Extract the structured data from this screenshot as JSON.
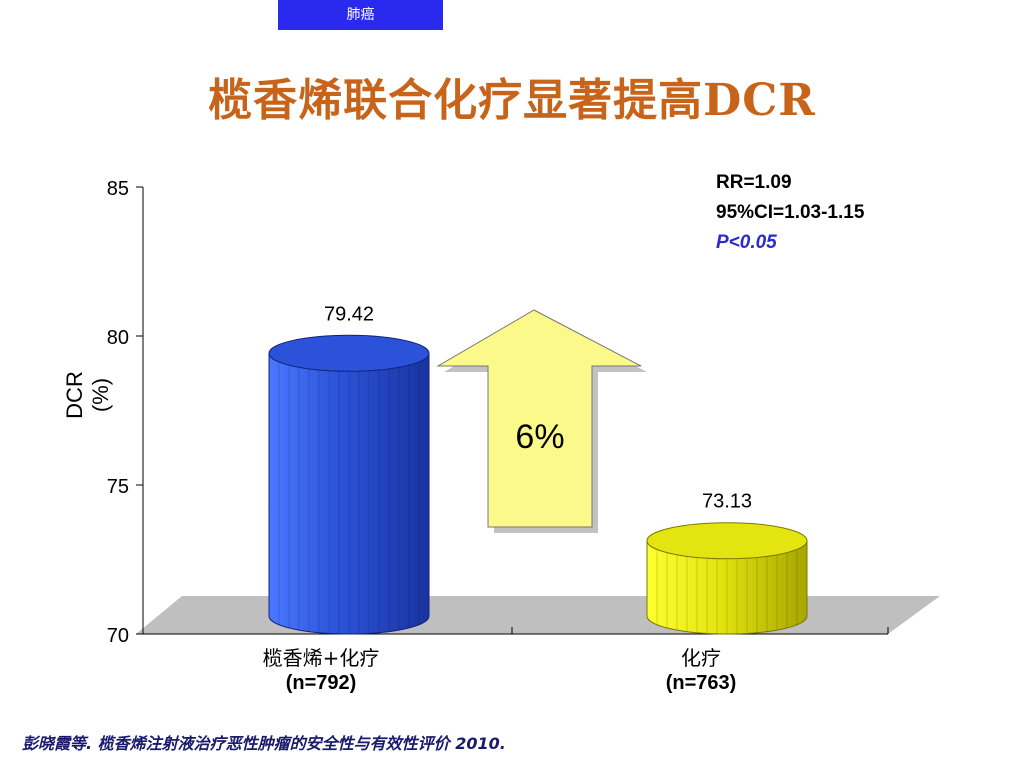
{
  "badge": "肺癌",
  "title": "榄香烯联合化疗显著提高DCR",
  "stats": {
    "rr": "RR=1.09",
    "ci": "95%CI=1.03-1.15",
    "p": "P<0.05"
  },
  "footnote": "彭晓霞等. 榄香烯注射液治疗恶性肿瘤的安全性与有效性评价 2010.",
  "colors": {
    "bar1": "#2b52d8",
    "bar2": "#e4e410",
    "arrow": "#fbf98a",
    "floor": "#bfbfbf",
    "title": "#c8641a"
  },
  "chart_data": {
    "type": "bar",
    "ylabel": "DCR\n(%)",
    "ylim": [
      70,
      85
    ],
    "yticks": [
      70,
      75,
      80,
      85
    ],
    "categories": [
      "榄香烯+化疗",
      "化疗"
    ],
    "sublabels": [
      "(n=792)",
      "(n=763)"
    ],
    "values": [
      79.42,
      73.13
    ],
    "value_labels": [
      "79.42",
      "73.13"
    ],
    "annotation": "6%",
    "grid": false
  }
}
